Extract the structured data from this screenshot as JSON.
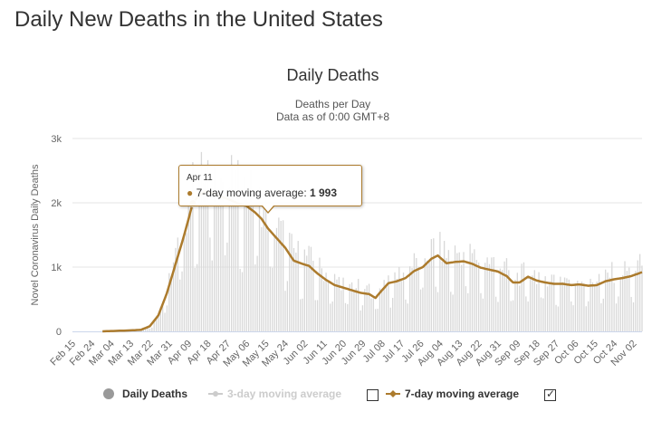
{
  "page": {
    "title": "Daily New Deaths in the United States"
  },
  "chart_data": {
    "type": "bar",
    "title": "Daily Deaths",
    "subtitle": "Deaths per Day",
    "subtitle2": "Data as of 0:00 GMT+8",
    "ylabel": "Novel Coronavirus Daily Deaths",
    "ylim": [
      0,
      3000
    ],
    "yticks": [
      0,
      1000,
      2000,
      3000
    ],
    "yticklabels": [
      "0",
      "1k",
      "2k",
      "3k"
    ],
    "xstart": "Feb 15",
    "xend": "Nov 06",
    "xticklabels": [
      "Feb 15",
      "Feb 24",
      "Mar 04",
      "Mar 13",
      "Mar 22",
      "Mar 31",
      "Apr 09",
      "Apr 18",
      "Apr 27",
      "May 06",
      "May 15",
      "May 24",
      "Jun 02",
      "Jun 11",
      "Jun 20",
      "Jun 29",
      "Jul 08",
      "Jul 17",
      "Jul 26",
      "Aug 04",
      "Aug 13",
      "Aug 22",
      "Aug 31",
      "Sep 09",
      "Sep 18",
      "Sep 27",
      "Oct 06",
      "Oct 15",
      "Oct 24",
      "Nov 02"
    ],
    "grid": true,
    "bar_series": {
      "name": "Daily Deaths",
      "color": "#d8d8d8"
    },
    "moving_average": {
      "name": "7-day moving average",
      "color": "#ac7b2d",
      "keypoints": [
        [
          "Feb 15",
          0
        ],
        [
          "Feb 29",
          0
        ],
        [
          "Mar 04",
          5
        ],
        [
          "Mar 13",
          15
        ],
        [
          "Mar 18",
          25
        ],
        [
          "Mar 22",
          80
        ],
        [
          "Mar 26",
          250
        ],
        [
          "Mar 30",
          600
        ],
        [
          "Apr 03",
          1050
        ],
        [
          "Apr 07",
          1500
        ],
        [
          "Apr 11",
          1993
        ],
        [
          "Apr 14",
          2120
        ],
        [
          "Apr 17",
          2180
        ],
        [
          "Apr 20",
          2150
        ],
        [
          "Apr 24",
          2100
        ],
        [
          "Apr 28",
          2050
        ],
        [
          "May 02",
          1990
        ],
        [
          "May 06",
          1950
        ],
        [
          "May 10",
          1850
        ],
        [
          "May 13",
          1750
        ],
        [
          "May 16",
          1600
        ],
        [
          "May 20",
          1450
        ],
        [
          "May 24",
          1300
        ],
        [
          "May 28",
          1100
        ],
        [
          "Jun 01",
          1050
        ],
        [
          "Jun 04",
          1020
        ],
        [
          "Jun 08",
          900
        ],
        [
          "Jun 12",
          800
        ],
        [
          "Jun 16",
          720
        ],
        [
          "Jun 20",
          680
        ],
        [
          "Jun 24",
          640
        ],
        [
          "Jun 28",
          600
        ],
        [
          "Jul 02",
          580
        ],
        [
          "Jul 05",
          520
        ],
        [
          "Jul 08",
          640
        ],
        [
          "Jul 11",
          750
        ],
        [
          "Jul 15",
          780
        ],
        [
          "Jul 19",
          830
        ],
        [
          "Jul 23",
          940
        ],
        [
          "Jul 27",
          1000
        ],
        [
          "Jul 31",
          1130
        ],
        [
          "Aug 03",
          1180
        ],
        [
          "Aug 07",
          1060
        ],
        [
          "Aug 11",
          1080
        ],
        [
          "Aug 15",
          1090
        ],
        [
          "Aug 19",
          1050
        ],
        [
          "Aug 23",
          990
        ],
        [
          "Aug 27",
          960
        ],
        [
          "Aug 31",
          930
        ],
        [
          "Sep 04",
          860
        ],
        [
          "Sep 07",
          760
        ],
        [
          "Sep 10",
          760
        ],
        [
          "Sep 14",
          850
        ],
        [
          "Sep 18",
          790
        ],
        [
          "Sep 22",
          760
        ],
        [
          "Sep 26",
          740
        ],
        [
          "Sep 30",
          740
        ],
        [
          "Oct 04",
          720
        ],
        [
          "Oct 08",
          730
        ],
        [
          "Oct 12",
          710
        ],
        [
          "Oct 16",
          720
        ],
        [
          "Oct 20",
          780
        ],
        [
          "Oct 24",
          810
        ],
        [
          "Oct 28",
          830
        ],
        [
          "Nov 01",
          860
        ],
        [
          "Nov 06",
          920
        ]
      ]
    },
    "three_day_average": {
      "name": "3-day moving average",
      "visible": false
    }
  },
  "legend": {
    "daily": "Daily Deaths",
    "three_day": "3-day moving average",
    "seven_day": "7-day moving average"
  },
  "tooltip": {
    "date": "Apr 11",
    "label": "7-day moving average: ",
    "value": "1 993"
  }
}
